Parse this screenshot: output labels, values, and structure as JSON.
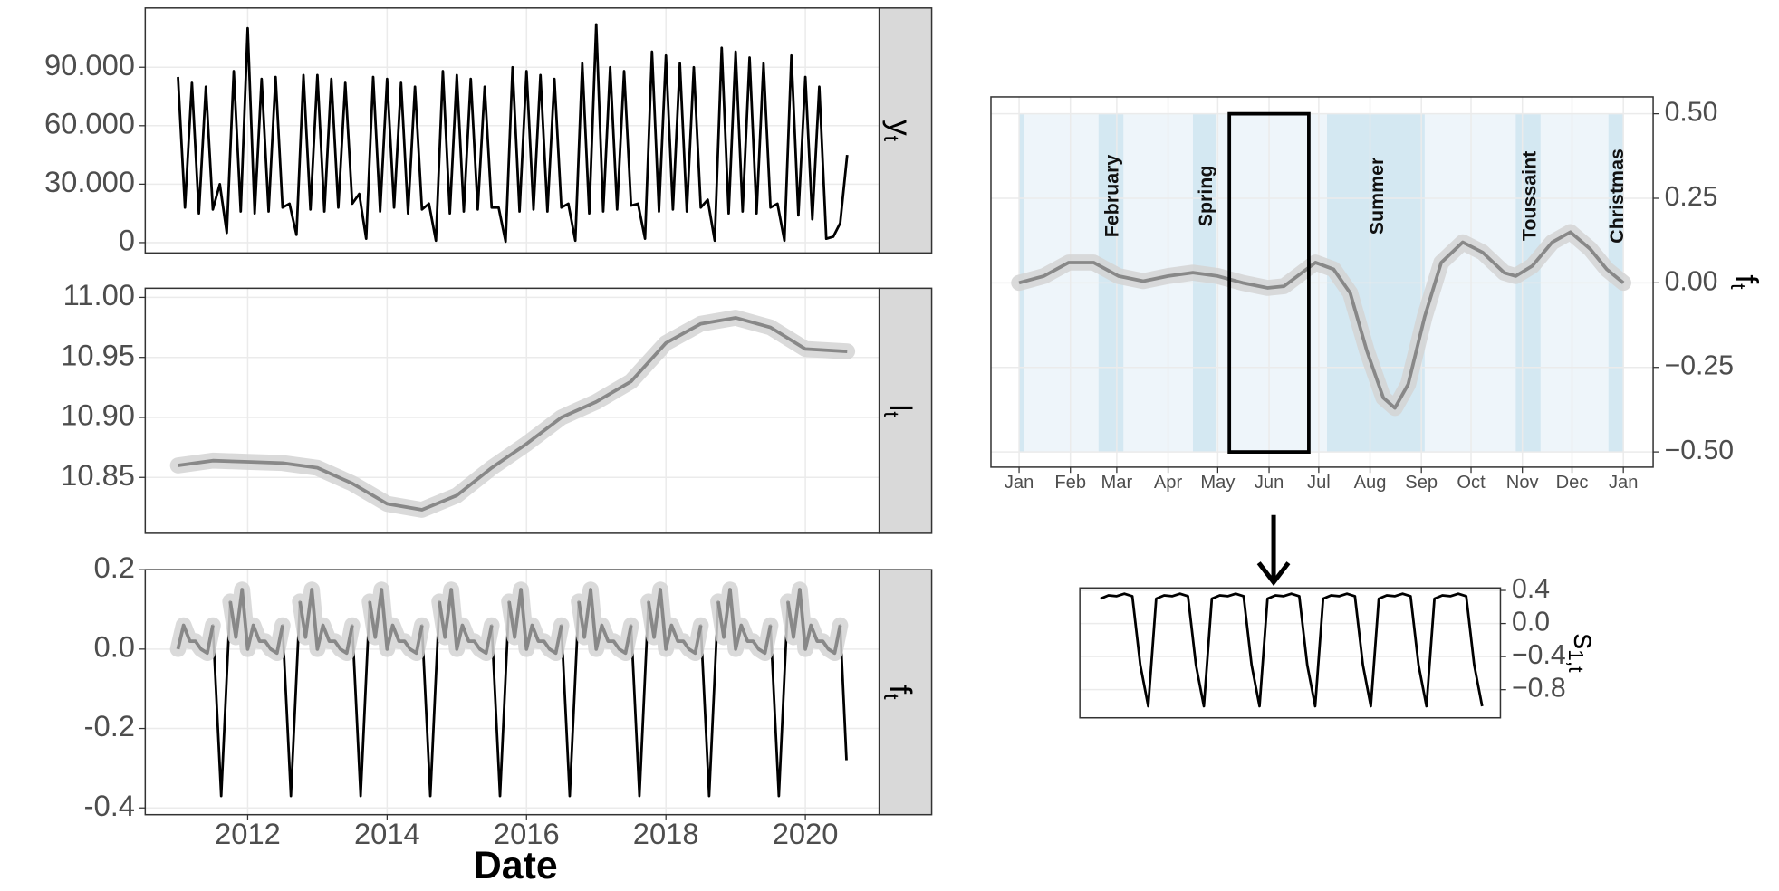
{
  "chart_data": [
    {
      "type": "line",
      "strip": {
        "main": "y",
        "sub": "t"
      },
      "x": [
        2011.0,
        2011.1,
        2011.2,
        2011.3,
        2011.4,
        2011.5,
        2011.6,
        2011.7,
        2011.8,
        2011.9,
        2012.0,
        2012.1,
        2012.2,
        2012.3,
        2012.4,
        2012.5,
        2012.6,
        2012.7,
        2012.8,
        2012.9,
        2013.0,
        2013.1,
        2013.2,
        2013.3,
        2013.4,
        2013.5,
        2013.6,
        2013.7,
        2013.8,
        2013.9,
        2014.0,
        2014.1,
        2014.2,
        2014.3,
        2014.4,
        2014.5,
        2014.6,
        2014.7,
        2014.8,
        2014.9,
        2015.0,
        2015.1,
        2015.2,
        2015.3,
        2015.4,
        2015.5,
        2015.6,
        2015.7,
        2015.8,
        2015.9,
        2016.0,
        2016.1,
        2016.2,
        2016.3,
        2016.4,
        2016.5,
        2016.6,
        2016.7,
        2016.8,
        2016.9,
        2017.0,
        2017.1,
        2017.2,
        2017.3,
        2017.4,
        2017.5,
        2017.6,
        2017.7,
        2017.8,
        2017.9,
        2018.0,
        2018.1,
        2018.2,
        2018.3,
        2018.4,
        2018.5,
        2018.6,
        2018.7,
        2018.8,
        2018.9,
        2019.0,
        2019.1,
        2019.2,
        2019.3,
        2019.4,
        2019.5,
        2019.6,
        2019.7,
        2019.8,
        2019.9,
        2020.0,
        2020.1,
        2020.2,
        2020.3,
        2020.4,
        2020.5,
        2020.6
      ],
      "series": [
        {
          "color": "#000000",
          "values": [
            85000,
            18000,
            82000,
            15000,
            80000,
            17000,
            30000,
            5000,
            88000,
            16000,
            110000,
            15000,
            84000,
            16000,
            85000,
            18000,
            20000,
            4000,
            86000,
            17000,
            86000,
            16000,
            84000,
            18000,
            82000,
            20000,
            25000,
            2000,
            85000,
            16000,
            84000,
            18000,
            82000,
            15000,
            80000,
            17000,
            20000,
            1000,
            88000,
            15000,
            86000,
            16000,
            84000,
            17000,
            80000,
            18000,
            18000,
            500,
            90000,
            16000,
            88000,
            17000,
            86000,
            16000,
            84000,
            18000,
            20000,
            1000,
            92000,
            15000,
            112000,
            16000,
            90000,
            17000,
            88000,
            19000,
            20000,
            2000,
            98000,
            16000,
            96000,
            17000,
            92000,
            16000,
            90000,
            18000,
            22000,
            1000,
            100000,
            15000,
            98000,
            16000,
            95000,
            15000,
            92000,
            18000,
            20000,
            1000,
            96000,
            14000,
            85000,
            12000,
            80000,
            2000,
            3000,
            10000,
            45000
          ]
        }
      ],
      "xlim": [
        2010.53,
        2021.06
      ],
      "ylim": [
        -5300,
        120400
      ],
      "yticks": [
        0,
        {
          "value": 30000,
          "label": "30.000"
        },
        {
          "value": 60000,
          "label": "60.000"
        },
        {
          "value": 90000,
          "label": "90.000"
        }
      ]
    },
    {
      "type": "line",
      "strip": {
        "main": "l",
        "sub": "t"
      },
      "x": [
        2011.0,
        2011.5,
        2012.0,
        2012.5,
        2013.0,
        2013.5,
        2014.0,
        2014.5,
        2015.0,
        2015.5,
        2016.0,
        2016.5,
        2017.0,
        2017.5,
        2018.0,
        2018.5,
        2019.0,
        2019.5,
        2020.0,
        2020.6
      ],
      "series": [
        {
          "color": "#888888",
          "ribbon": "#d3d3d3",
          "values": [
            10.86,
            10.864,
            10.863,
            10.862,
            10.858,
            10.845,
            10.828,
            10.823,
            10.835,
            10.858,
            10.878,
            10.9,
            10.913,
            10.93,
            10.962,
            10.978,
            10.983,
            10.975,
            10.957,
            10.955
          ]
        }
      ],
      "xlim": [
        2010.53,
        2021.06
      ],
      "ylim": [
        10.8035,
        11.0076
      ],
      "yticks": [
        10.85,
        {
          "value": 10.9,
          "label": "10.90"
        },
        10.95,
        {
          "value": 11,
          "label": "11.00"
        }
      ]
    },
    {
      "type": "line",
      "strip": {
        "main": "f",
        "sub": "t"
      },
      "x_label": "Date",
      "x": [
        2011.0,
        2011.08,
        2011.17,
        2011.25,
        2011.33,
        2011.42,
        2011.5,
        2011.62,
        2011.75,
        2011.83,
        2011.92,
        2012.0,
        2012.08,
        2012.17,
        2012.25,
        2012.33,
        2012.42,
        2012.5,
        2012.62,
        2012.75,
        2012.83,
        2012.92,
        2013.0,
        2013.08,
        2013.17,
        2013.25,
        2013.33,
        2013.42,
        2013.5,
        2013.62,
        2013.75,
        2013.83,
        2013.92,
        2014.0,
        2014.08,
        2014.17,
        2014.25,
        2014.33,
        2014.42,
        2014.5,
        2014.62,
        2014.75,
        2014.83,
        2014.92,
        2015.0,
        2015.08,
        2015.17,
        2015.25,
        2015.33,
        2015.42,
        2015.5,
        2015.62,
        2015.75,
        2015.83,
        2015.92,
        2016.0,
        2016.08,
        2016.17,
        2016.25,
        2016.33,
        2016.42,
        2016.5,
        2016.62,
        2016.75,
        2016.83,
        2016.92,
        2017.0,
        2017.08,
        2017.17,
        2017.25,
        2017.33,
        2017.42,
        2017.5,
        2017.62,
        2017.75,
        2017.83,
        2017.92,
        2018.0,
        2018.08,
        2018.17,
        2018.25,
        2018.33,
        2018.42,
        2018.5,
        2018.62,
        2018.75,
        2018.83,
        2018.92,
        2019.0,
        2019.08,
        2019.17,
        2019.25,
        2019.33,
        2019.42,
        2019.5,
        2019.62,
        2019.75,
        2019.83,
        2019.92,
        2020.0,
        2020.08,
        2020.17,
        2020.25,
        2020.33,
        2020.42,
        2020.5,
        2020.59
      ],
      "series": [
        {
          "color": "#000000",
          "values": [
            0.0,
            0.06,
            0.02,
            0.02,
            0.0,
            -0.01,
            0.06,
            -0.37,
            0.12,
            0.03,
            0.15,
            0.0,
            0.06,
            0.02,
            0.02,
            0.0,
            -0.01,
            0.06,
            -0.37,
            0.12,
            0.03,
            0.15,
            0.0,
            0.06,
            0.02,
            0.02,
            0.0,
            -0.01,
            0.06,
            -0.37,
            0.12,
            0.03,
            0.15,
            0.0,
            0.06,
            0.02,
            0.02,
            0.0,
            -0.01,
            0.06,
            -0.37,
            0.12,
            0.03,
            0.15,
            0.0,
            0.06,
            0.02,
            0.02,
            0.0,
            -0.01,
            0.06,
            -0.37,
            0.12,
            0.03,
            0.15,
            0.0,
            0.06,
            0.02,
            0.02,
            0.0,
            -0.01,
            0.06,
            -0.37,
            0.12,
            0.03,
            0.15,
            0.0,
            0.06,
            0.02,
            0.02,
            0.0,
            -0.01,
            0.06,
            -0.37,
            0.12,
            0.03,
            0.15,
            0.0,
            0.06,
            0.02,
            0.02,
            0.0,
            -0.01,
            0.06,
            -0.37,
            0.12,
            0.03,
            0.15,
            0.0,
            0.06,
            0.02,
            0.02,
            0.0,
            -0.01,
            0.06,
            -0.37,
            0.12,
            0.03,
            0.15,
            0.0,
            0.06,
            0.02,
            0.02,
            0.0,
            -0.01,
            0.06,
            -0.28
          ]
        },
        {
          "color": "#888888",
          "ribbon": "#d3d3d3",
          "values": [
            0.0,
            0.06,
            0.02,
            0.02,
            0.0,
            -0.01,
            0.06,
            null,
            0.12,
            0.03,
            0.15,
            0.0,
            0.06,
            0.02,
            0.02,
            0.0,
            -0.01,
            0.06,
            null,
            0.12,
            0.03,
            0.15,
            0.0,
            0.06,
            0.02,
            0.02,
            0.0,
            -0.01,
            0.06,
            null,
            0.12,
            0.03,
            0.15,
            0.0,
            0.06,
            0.02,
            0.02,
            0.0,
            -0.01,
            0.06,
            null,
            0.12,
            0.03,
            0.15,
            0.0,
            0.06,
            0.02,
            0.02,
            0.0,
            -0.01,
            0.06,
            null,
            0.12,
            0.03,
            0.15,
            0.0,
            0.06,
            0.02,
            0.02,
            0.0,
            -0.01,
            0.06,
            null,
            0.12,
            0.03,
            0.15,
            0.0,
            0.06,
            0.02,
            0.02,
            0.0,
            -0.01,
            0.06,
            null,
            0.12,
            0.03,
            0.15,
            0.0,
            0.06,
            0.02,
            0.02,
            0.0,
            -0.01,
            0.06,
            null,
            0.12,
            0.03,
            0.15,
            0.0,
            0.06,
            0.02,
            0.02,
            0.0,
            -0.01,
            0.06,
            null,
            0.12,
            0.03,
            0.15,
            0.0,
            0.06,
            0.02,
            0.02,
            0.0,
            -0.01,
            0.06,
            null
          ]
        }
      ],
      "xlim": [
        2010.53,
        2021.06
      ],
      "ylim": [
        -0.417,
        0.2
      ],
      "xticks": [
        2012,
        2014,
        2016,
        2018,
        2020
      ],
      "yticks": [
        -0.4,
        -0.2,
        {
          "value": 0,
          "label": "0.0"
        },
        0.2
      ]
    },
    {
      "type": "line",
      "y_title": {
        "main": "f",
        "sub": "t"
      },
      "periods": [
        {
          "label": null,
          "x": [
            0,
            365
          ],
          "color": "#eef5fa"
        },
        {
          "label": null,
          "x": [
            0,
            3
          ],
          "color": "#d4e8f2"
        },
        {
          "label": "February",
          "x": [
            48,
            63
          ],
          "color": "#d4e8f2"
        },
        {
          "label": "Spring",
          "x": [
            105,
            119
          ],
          "color": "#d4e8f2"
        },
        {
          "label": "Summer",
          "x": [
            186,
            245
          ],
          "color": "#d4e8f2"
        },
        {
          "label": "Toussaint",
          "x": [
            300,
            315
          ],
          "color": "#d4e8f2"
        },
        {
          "label": "Christmas",
          "x": [
            356,
            365
          ],
          "color": "#d4e8f2"
        }
      ],
      "highlight": {
        "x": [
          127,
          175
        ],
        "y": [
          -0.5,
          0.5
        ]
      },
      "x": [
        0,
        15,
        30,
        45,
        60,
        75,
        90,
        105,
        120,
        135,
        150,
        160,
        179,
        190,
        200,
        210,
        220,
        227,
        235,
        245,
        255,
        268,
        280,
        293,
        300,
        310,
        322,
        333,
        345,
        355,
        365
      ],
      "series": [
        {
          "color": "#888888",
          "ribbon": "#d3d3d3",
          "values": [
            0.0,
            0.02,
            0.06,
            0.06,
            0.02,
            0.005,
            0.02,
            0.03,
            0.02,
            0.0,
            -0.015,
            -0.01,
            0.06,
            0.04,
            -0.03,
            -0.2,
            -0.34,
            -0.37,
            -0.3,
            -0.1,
            0.06,
            0.12,
            0.09,
            0.03,
            0.02,
            0.05,
            0.12,
            0.15,
            0.1,
            0.04,
            0.0
          ]
        }
      ],
      "xlim": [
        -17,
        383
      ],
      "ylim": [
        -0.545,
        0.55
      ],
      "xticks": [
        {
          "value": 0,
          "label": "Jan"
        },
        {
          "value": 31,
          "label": "Feb"
        },
        {
          "value": 59,
          "label": "Mar"
        },
        {
          "value": 90,
          "label": "Apr"
        },
        {
          "value": 120,
          "label": "May"
        },
        {
          "value": 151,
          "label": "Jun"
        },
        {
          "value": 181,
          "label": "Jul"
        },
        {
          "value": 212,
          "label": "Aug"
        },
        {
          "value": 243,
          "label": "Sep"
        },
        {
          "value": 273,
          "label": "Oct"
        },
        {
          "value": 304,
          "label": "Nov"
        },
        {
          "value": 334,
          "label": "Dec"
        },
        {
          "value": 365,
          "label": "Jan"
        }
      ],
      "yticks": [
        {
          "value": -0.5,
          "label": "−0.50"
        },
        {
          "value": -0.25,
          "label": "−0.25"
        },
        {
          "value": 0,
          "label": "0.00"
        },
        {
          "value": 0.25,
          "label": "0.25"
        },
        {
          "value": 0.5,
          "label": "0.50"
        }
      ]
    },
    {
      "type": "line",
      "y_title": {
        "main": "s",
        "sub": "1,t"
      },
      "series": [
        {
          "color": "#000000",
          "values": [
            0.3,
            0.34,
            0.33,
            0.36,
            0.33,
            -0.5,
            -1.0,
            0.3,
            0.34,
            0.33,
            0.36,
            0.33,
            -0.5,
            -1.0,
            0.3,
            0.34,
            0.33,
            0.36,
            0.33,
            -0.5,
            -1.0,
            0.3,
            0.34,
            0.33,
            0.36,
            0.33,
            -0.5,
            -1.0,
            0.3,
            0.34,
            0.33,
            0.36,
            0.33,
            -0.5,
            -1.0,
            0.3,
            0.34,
            0.33,
            0.36,
            0.33,
            -0.5,
            -1.0,
            0.3,
            0.34,
            0.33,
            0.36,
            0.33,
            -0.5,
            -1.0
          ]
        }
      ],
      "xlim": [
        -2.6,
        50.3
      ],
      "ylim": [
        -1.14,
        0.43
      ],
      "yticks": [
        {
          "value": -0.8,
          "label": "−0.8"
        },
        {
          "value": -0.4,
          "label": "−0.4"
        },
        {
          "value": 0,
          "label": "0.0"
        },
        0.4
      ]
    }
  ]
}
